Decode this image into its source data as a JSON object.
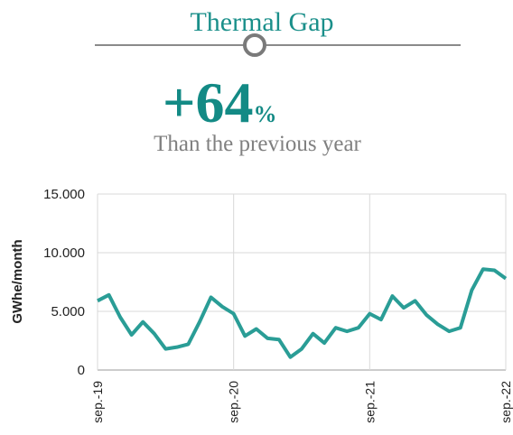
{
  "header": {
    "title": "Thermal Gap",
    "headline": "+64",
    "headline_unit": "%",
    "subtitle": "Than the previous year"
  },
  "chart_data": {
    "type": "line",
    "y_label": "GWhe/month",
    "categories": [
      "sep.-19",
      null,
      null,
      null,
      null,
      null,
      null,
      null,
      null,
      null,
      null,
      null,
      "sep.-20",
      null,
      null,
      null,
      null,
      null,
      null,
      null,
      null,
      null,
      null,
      null,
      "sep.-21",
      null,
      null,
      null,
      null,
      null,
      null,
      null,
      null,
      null,
      null,
      null,
      "sep.-22"
    ],
    "series": [
      {
        "name": "Thermal Gap",
        "color": "#2a9d96",
        "values": [
          5900,
          6400,
          4500,
          3000,
          4100,
          3100,
          1800,
          1950,
          2200,
          4100,
          6200,
          5400,
          4800,
          2900,
          3500,
          2700,
          2600,
          1100,
          1800,
          3100,
          2300,
          3600,
          3300,
          3600,
          4800,
          4300,
          6300,
          5300,
          5900,
          4700,
          3900,
          3300,
          3600,
          6800,
          8600,
          8500,
          7800
        ]
      }
    ],
    "ylim": [
      0,
      15000
    ],
    "yticks": [
      {
        "value": 0,
        "label": "0"
      },
      {
        "value": 5000,
        "label": "5.000"
      },
      {
        "value": 10000,
        "label": "10.000"
      },
      {
        "value": 15000,
        "label": "15.000"
      }
    ],
    "grid": true
  }
}
